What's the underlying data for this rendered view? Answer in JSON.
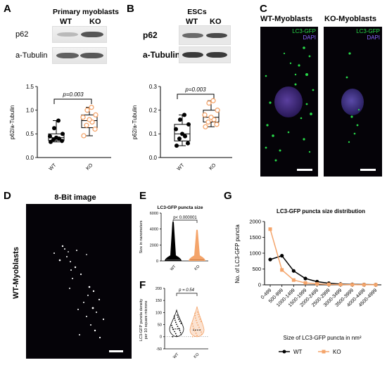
{
  "panels": {
    "A": {
      "letter": "A",
      "title": "Primary myoblasts",
      "lanes": [
        "WT",
        "KO"
      ],
      "rows": [
        "p62",
        "a-Tubulin"
      ],
      "plot": {
        "ylabel": "p62/a-Tubulin",
        "yticks": [
          "0.0",
          "0.5",
          "1.0",
          "1.5"
        ],
        "xticks": [
          "WT",
          "KO"
        ],
        "pvalue": "p=0.003"
      }
    },
    "B": {
      "letter": "B",
      "title": "ESCs",
      "lanes": [
        "WT",
        "KO"
      ],
      "rows": [
        "p62",
        "a-Tubulin"
      ],
      "plot": {
        "ylabel": "p62/a-Tubulin",
        "yticks": [
          "0.0",
          "0.1",
          "0.2",
          "0.3"
        ],
        "xticks": [
          "WT",
          "KO"
        ],
        "pvalue": "p=0.003"
      }
    },
    "C": {
      "letter": "C",
      "left_title": "WT-Myoblasts",
      "right_title": "KO-Myoblasts",
      "channel_green": "LC3-GFP",
      "channel_blue": "DAPI"
    },
    "D": {
      "letter": "D",
      "title": "8-Bit image",
      "side_label": "WT-Myoblasts"
    },
    "E": {
      "letter": "E",
      "title": "LC3-GFP puncta size",
      "ylabel": "Size in nanometers",
      "yticks": [
        "0",
        "2000",
        "4000",
        "6000"
      ],
      "xticks": [
        "WT",
        "KO"
      ],
      "pvalue": "p< 0.000001"
    },
    "F": {
      "letter": "F",
      "ylabel_line1": "LC3-GFP puncta density",
      "ylabel_line2": "per 10 square microns",
      "yticks": [
        "-50",
        "0",
        "50",
        "100",
        "150",
        "200"
      ],
      "xticks": [
        "WT",
        "KO"
      ],
      "pvalue": "p = 0.54"
    },
    "G": {
      "letter": "G",
      "title": "LC3-GFP puncta size distribution",
      "ylabel": "No. of LC3-GFP puncta",
      "xlabel": "Size of LC3-GFP puncta in nm²",
      "yticks": [
        "0",
        "500",
        "1000",
        "1500",
        "2000"
      ],
      "legend": [
        "WT",
        "KO"
      ]
    }
  },
  "colors": {
    "wt": "#000000",
    "ko": "#f4a46a",
    "micro_green": "#27d848",
    "micro_purple": "#8a66ff"
  },
  "chart_data": [
    {
      "type": "box",
      "panel": "A",
      "categories": [
        "WT",
        "KO"
      ],
      "ylabel": "p62/a-Tubulin",
      "ylim": [
        0,
        1.5
      ],
      "series": [
        {
          "name": "WT",
          "points": [
            0.33,
            0.35,
            0.38,
            0.4,
            0.42,
            0.45,
            0.5,
            0.62,
            0.78
          ],
          "q1": 0.36,
          "median": 0.42,
          "q3": 0.5,
          "min": 0.33,
          "max": 0.78
        },
        {
          "name": "KO",
          "points": [
            0.46,
            0.6,
            0.68,
            0.75,
            0.8,
            0.85,
            0.9,
            1.0,
            1.06
          ],
          "q1": 0.63,
          "median": 0.78,
          "q3": 0.9,
          "min": 0.46,
          "max": 1.06
        }
      ],
      "pvalue": "p=0.003"
    },
    {
      "type": "box",
      "panel": "B",
      "categories": [
        "WT",
        "KO"
      ],
      "ylabel": "p62/a-Tubulin",
      "ylim": [
        0,
        0.3
      ],
      "series": [
        {
          "name": "WT",
          "points": [
            0.05,
            0.06,
            0.08,
            0.09,
            0.1,
            0.12,
            0.14,
            0.16,
            0.18
          ],
          "q1": 0.07,
          "median": 0.1,
          "q3": 0.14,
          "min": 0.05,
          "max": 0.18
        },
        {
          "name": "KO",
          "points": [
            0.13,
            0.14,
            0.15,
            0.16,
            0.17,
            0.18,
            0.2,
            0.23,
            0.24
          ],
          "q1": 0.15,
          "median": 0.17,
          "q3": 0.2,
          "min": 0.13,
          "max": 0.24
        }
      ],
      "pvalue": "p=0.003"
    },
    {
      "type": "scatter",
      "panel": "E",
      "title": "LC3-GFP puncta size",
      "categories": [
        "WT",
        "KO"
      ],
      "ylabel": "Size in nanometers",
      "ylim": [
        0,
        6000
      ],
      "series": [
        {
          "name": "WT",
          "max": 4900
        },
        {
          "name": "KO",
          "max": 3900
        }
      ],
      "pvalue": "p< 0.000001"
    },
    {
      "type": "violin",
      "panel": "F",
      "categories": [
        "WT",
        "KO"
      ],
      "ylabel": "LC3-GFP puncta density per 10 square microns",
      "ylim": [
        -50,
        200
      ],
      "series": [
        {
          "name": "WT",
          "min": 0,
          "max": 110,
          "median": 32
        },
        {
          "name": "KO",
          "min": 0,
          "max": 125,
          "median": 28
        }
      ],
      "pvalue": "p = 0.54"
    },
    {
      "type": "line",
      "panel": "G",
      "title": "LC3-GFP puncta size distribution",
      "categories": [
        "0-499",
        "500-999",
        "1000-1499",
        "1500-1999",
        "2000-2499",
        "2500-2999",
        "3000-3499",
        "3500-3999",
        "4000-4499",
        "4500-4999"
      ],
      "xlabel": "Size of LC3-GFP puncta in nm²",
      "ylabel": "No. of LC3-GFP puncta",
      "ylim": [
        0,
        2000
      ],
      "series": [
        {
          "name": "WT",
          "values": [
            800,
            920,
            440,
            200,
            100,
            50,
            25,
            15,
            10,
            5
          ]
        },
        {
          "name": "KO",
          "values": [
            1760,
            470,
            150,
            60,
            30,
            15,
            10,
            5,
            3,
            2
          ]
        }
      ]
    }
  ]
}
